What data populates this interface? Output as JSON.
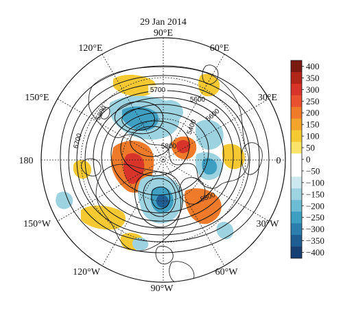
{
  "title": "29 Jan 2014",
  "longitude_labels": {
    "lon_90E": "90°E",
    "lon_60E": "60°E",
    "lon_30E": "30°E",
    "lon_0": "0",
    "lon_30W": "30°W",
    "lon_60W": "60°W",
    "lon_90W": "90°W",
    "lon_120W": "120°W",
    "lon_150W": "150°W",
    "lon_180": "180",
    "lon_150E": "150°E",
    "lon_120E": "120°E"
  },
  "contour_labels": [
    "5700",
    "5600",
    "5800",
    "6700",
    "5400",
    "5800",
    "5800",
    "5600"
  ],
  "colorbar": {
    "ticks": [
      "400",
      "350",
      "300",
      "250",
      "200",
      "150",
      "100",
      "50",
      "0",
      "−50",
      "−100",
      "−150",
      "−200",
      "−250",
      "−300",
      "−350",
      "−400"
    ],
    "colors": [
      "#7a1a12",
      "#b2251b",
      "#d8342a",
      "#e8502f",
      "#ef7a2a",
      "#f3a42b",
      "#f6c933",
      "#fae56a",
      "#ffffff",
      "#ffffff",
      "#cde8ef",
      "#9dd3e0",
      "#6cbcd4",
      "#3e9fc3",
      "#2a7fae",
      "#1f5e93",
      "#173f74"
    ]
  },
  "colors": {
    "positive_strong": "#d8342a",
    "positive_mid": "#ef7a2a",
    "positive_weak": "#f6c933",
    "negative_weak": "#9dd3e0",
    "negative_mid": "#3e9fc3",
    "negative_strong": "#1f5e93"
  }
}
